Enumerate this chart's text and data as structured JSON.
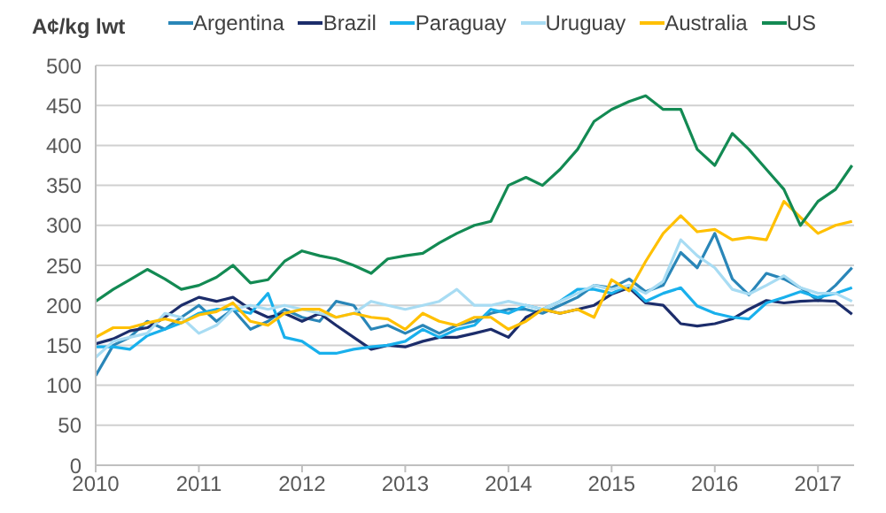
{
  "chart_data": {
    "type": "line",
    "ylabel": "A¢/kg lwt",
    "legend": "top",
    "grid": "y",
    "x": [
      2010,
      2010.17,
      2010.33,
      2010.5,
      2010.67,
      2010.83,
      2011,
      2011.17,
      2011.33,
      2011.5,
      2011.67,
      2011.83,
      2012,
      2012.17,
      2012.33,
      2012.5,
      2012.67,
      2012.83,
      2013,
      2013.17,
      2013.33,
      2013.5,
      2013.67,
      2013.83,
      2014,
      2014.17,
      2014.33,
      2014.5,
      2014.67,
      2014.83,
      2015,
      2015.17,
      2015.33,
      2015.5,
      2015.67,
      2015.83,
      2016,
      2016.17,
      2016.33,
      2016.5,
      2016.67,
      2016.83,
      2017,
      2017.17,
      2017.33
    ],
    "xlim": [
      2010,
      2017.35
    ],
    "xticks": [
      2010,
      2011,
      2012,
      2013,
      2014,
      2015,
      2016,
      2017
    ],
    "ylim": [
      0,
      500
    ],
    "yticks": [
      0,
      50,
      100,
      150,
      200,
      250,
      300,
      350,
      400,
      450,
      500
    ],
    "series": [
      {
        "name": "Argentina",
        "color": "#2a86b8",
        "values": [
          112,
          150,
          160,
          180,
          170,
          185,
          200,
          180,
          195,
          170,
          180,
          195,
          185,
          180,
          205,
          200,
          170,
          175,
          165,
          175,
          165,
          175,
          180,
          190,
          195,
          195,
          190,
          200,
          210,
          225,
          222,
          233,
          217,
          225,
          266,
          247,
          290,
          233,
          213,
          240,
          233,
          222,
          206,
          225,
          247
        ]
      },
      {
        "name": "Brazil",
        "color": "#1c2d6b",
        "values": [
          152,
          158,
          168,
          172,
          185,
          200,
          210,
          205,
          210,
          195,
          185,
          190,
          180,
          190,
          175,
          160,
          145,
          150,
          148,
          155,
          160,
          160,
          165,
          170,
          160,
          185,
          195,
          190,
          195,
          200,
          214,
          222,
          203,
          200,
          177,
          174,
          177,
          183,
          195,
          206,
          203,
          205,
          206,
          205,
          189
        ]
      },
      {
        "name": "Paraguay",
        "color": "#19b0ec",
        "values": [
          148,
          148,
          145,
          162,
          170,
          178,
          190,
          195,
          195,
          190,
          215,
          160,
          155,
          140,
          140,
          145,
          148,
          150,
          155,
          170,
          160,
          170,
          175,
          195,
          190,
          200,
          195,
          205,
          220,
          220,
          215,
          225,
          205,
          215,
          222,
          199,
          190,
          185,
          183,
          203,
          210,
          217,
          210,
          215,
          222
        ]
      },
      {
        "name": "Uruguay",
        "color": "#a8dcf3",
        "values": [
          135,
          155,
          160,
          165,
          190,
          185,
          165,
          175,
          195,
          200,
          195,
          200,
          195,
          190,
          185,
          190,
          205,
          200,
          195,
          200,
          205,
          220,
          200,
          200,
          205,
          200,
          195,
          205,
          215,
          225,
          220,
          225,
          215,
          230,
          282,
          262,
          247,
          220,
          214,
          225,
          237,
          222,
          215,
          215,
          205
        ]
      },
      {
        "name": "Australia",
        "color": "#ffc000",
        "values": [
          160,
          172,
          172,
          178,
          183,
          178,
          188,
          192,
          203,
          180,
          175,
          190,
          195,
          195,
          185,
          190,
          185,
          183,
          170,
          190,
          180,
          175,
          185,
          185,
          170,
          180,
          195,
          190,
          195,
          185,
          232,
          218,
          255,
          290,
          312,
          292,
          295,
          282,
          285,
          282,
          330,
          310,
          290,
          300,
          305
        ]
      },
      {
        "name": "US",
        "color": "#138a53",
        "values": [
          205,
          220,
          232,
          245,
          233,
          220,
          225,
          235,
          250,
          228,
          232,
          255,
          268,
          262,
          258,
          250,
          240,
          258,
          262,
          265,
          278,
          290,
          300,
          305,
          350,
          360,
          350,
          370,
          395,
          430,
          445,
          455,
          462,
          445,
          445,
          395,
          375,
          415,
          395,
          370,
          345,
          300,
          330,
          345,
          375
        ]
      }
    ]
  }
}
